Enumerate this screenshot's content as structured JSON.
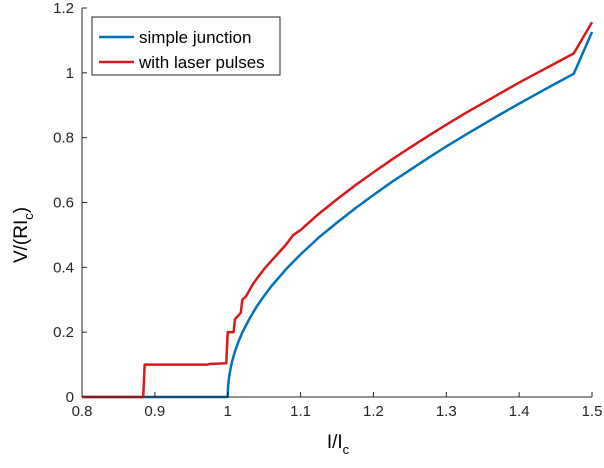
{
  "chart_data": {
    "type": "line",
    "xlabel": "I/I",
    "xlabel_sub": "c",
    "ylabel": "V/(RI",
    "ylabel_sub": "c",
    "ylabel_close": ")",
    "xlim": [
      0.8,
      1.5
    ],
    "ylim": [
      0,
      1.2
    ],
    "xticks": [
      0.8,
      0.9,
      1,
      1.1,
      1.2,
      1.3,
      1.4,
      1.5
    ],
    "xtick_labels": [
      "0.8",
      "0.9",
      "1",
      "1.1",
      "1.2",
      "1.3",
      "1.4",
      "1.5"
    ],
    "yticks": [
      0,
      0.2,
      0.4,
      0.6,
      0.8,
      1,
      1.2
    ],
    "ytick_labels": [
      "0",
      "0.2",
      "0.4",
      "0.6",
      "0.8",
      "1",
      "1.2"
    ],
    "grid": false,
    "legend_position": "top-left",
    "series": [
      {
        "name": "simple junction",
        "color": "#0072BD",
        "x": [
          0.8,
          1.0,
          1.0005,
          1.001,
          1.002,
          1.004,
          1.006,
          1.01,
          1.015,
          1.02,
          1.03,
          1.04,
          1.05,
          1.06,
          1.08,
          1.1,
          1.125,
          1.15,
          1.175,
          1.2,
          1.225,
          1.25,
          1.275,
          1.3,
          1.325,
          1.35,
          1.375,
          1.4,
          1.425,
          1.45,
          1.475,
          1.5
        ],
        "y": [
          0,
          0,
          0.032,
          0.045,
          0.063,
          0.089,
          0.11,
          0.141,
          0.172,
          0.199,
          0.242,
          0.28,
          0.312,
          0.342,
          0.394,
          0.44,
          0.492,
          0.538,
          0.582,
          0.623,
          0.663,
          0.7,
          0.737,
          0.773,
          0.807,
          0.84,
          0.873,
          0.905,
          0.936,
          0.967,
          0.997,
          1.126
        ]
      },
      {
        "name": "with laser pulses",
        "color": "#D7191C",
        "x": [
          0.8,
          0.884,
          0.886,
          0.972,
          0.975,
          0.998,
          1.0,
          1.008,
          1.01,
          1.018,
          1.02,
          1.025,
          1.03,
          1.035,
          1.04,
          1.05,
          1.06,
          1.07,
          1.08,
          1.09,
          1.1,
          1.125,
          1.15,
          1.175,
          1.2,
          1.225,
          1.25,
          1.275,
          1.3,
          1.325,
          1.35,
          1.375,
          1.4,
          1.425,
          1.45,
          1.475,
          1.5
        ],
        "y": [
          0,
          0,
          0.1,
          0.1,
          0.102,
          0.104,
          0.2,
          0.2,
          0.24,
          0.26,
          0.3,
          0.31,
          0.33,
          0.35,
          0.365,
          0.395,
          0.42,
          0.445,
          0.47,
          0.5,
          0.515,
          0.565,
          0.61,
          0.653,
          0.693,
          0.732,
          0.769,
          0.805,
          0.84,
          0.874,
          0.906,
          0.938,
          0.97,
          1.0,
          1.03,
          1.06,
          1.156
        ]
      }
    ]
  }
}
